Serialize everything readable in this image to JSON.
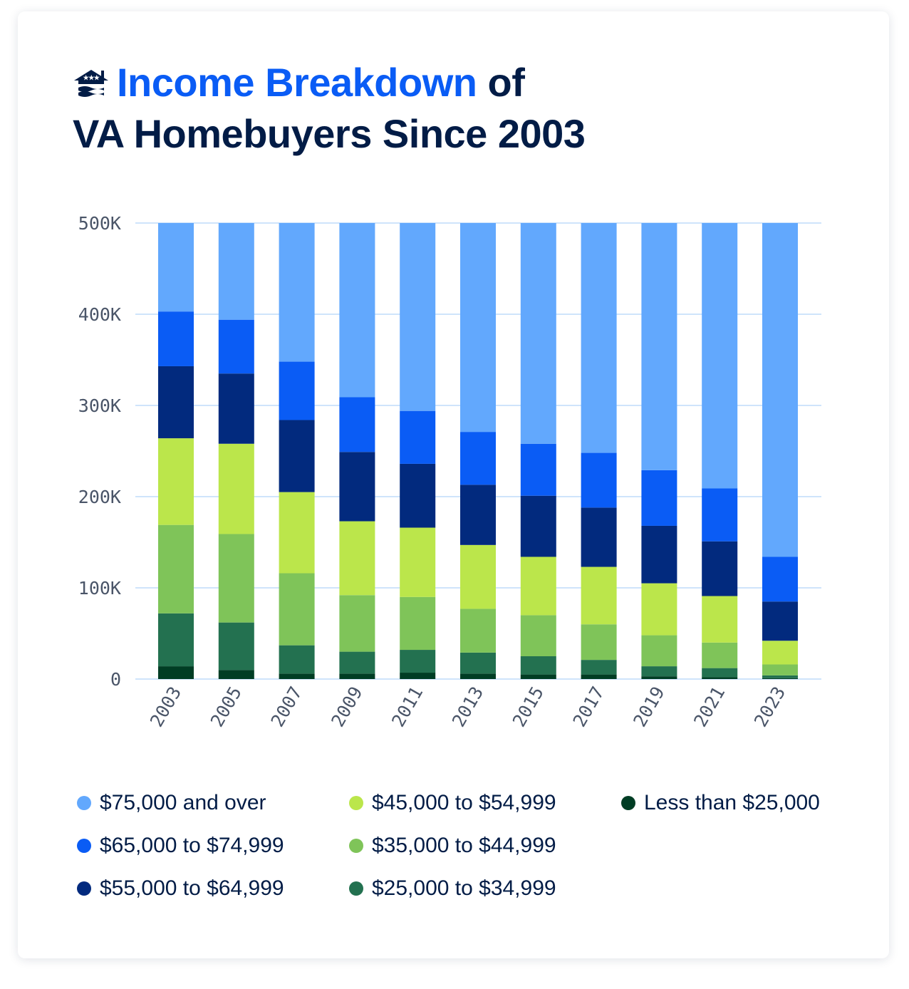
{
  "title": {
    "highlight": "Income Breakdown",
    "rest1": " of",
    "line2": "VA Homebuyers Since 2003"
  },
  "chart_data": {
    "type": "bar",
    "stacked": true,
    "categories": [
      "2003",
      "2005",
      "2007",
      "2009",
      "2011",
      "2013",
      "2015",
      "2017",
      "2019",
      "2021",
      "2023"
    ],
    "ylim": [
      0,
      500000
    ],
    "yticks": [
      0,
      100000,
      200000,
      300000,
      400000,
      500000
    ],
    "ytick_labels": [
      "0",
      "100K",
      "200K",
      "300K",
      "400K",
      "500K"
    ],
    "grid": true,
    "legend_position": "bottom",
    "series": [
      {
        "name": "Less than $25,000",
        "color": "#003d24",
        "values": [
          14000,
          10000,
          6000,
          6000,
          7000,
          6000,
          5000,
          5000,
          3000,
          2000,
          1000
        ]
      },
      {
        "name": "$25,000 to $34,999",
        "color": "#237150",
        "values": [
          58000,
          52000,
          31000,
          24000,
          25000,
          23000,
          20000,
          16000,
          11000,
          10000,
          3000
        ]
      },
      {
        "name": "$35,000 to $44,999",
        "color": "#7fc459",
        "values": [
          97000,
          97000,
          79000,
          62000,
          58000,
          48000,
          45000,
          39000,
          34000,
          28000,
          12000
        ]
      },
      {
        "name": "$45,000 to $54,999",
        "color": "#bbe64b",
        "values": [
          95000,
          99000,
          89000,
          81000,
          76000,
          70000,
          64000,
          63000,
          57000,
          51000,
          26000
        ]
      },
      {
        "name": "$55,000 to $64,999",
        "color": "#022a7e",
        "values": [
          79000,
          77000,
          79000,
          76000,
          70000,
          66000,
          67000,
          65000,
          63000,
          60000,
          43000
        ]
      },
      {
        "name": "$65,000 to $74,999",
        "color": "#0a5cf5",
        "values": [
          60000,
          59000,
          64000,
          60000,
          58000,
          58000,
          57000,
          60000,
          61000,
          58000,
          49000
        ]
      },
      {
        "name": "$75,000 and over",
        "color": "#62a8fd",
        "values": [
          97000,
          106000,
          152000,
          191000,
          206000,
          229000,
          242000,
          252000,
          271000,
          291000,
          366000
        ]
      }
    ]
  },
  "legend_order": [
    6,
    5,
    4,
    3,
    2,
    1,
    0
  ]
}
